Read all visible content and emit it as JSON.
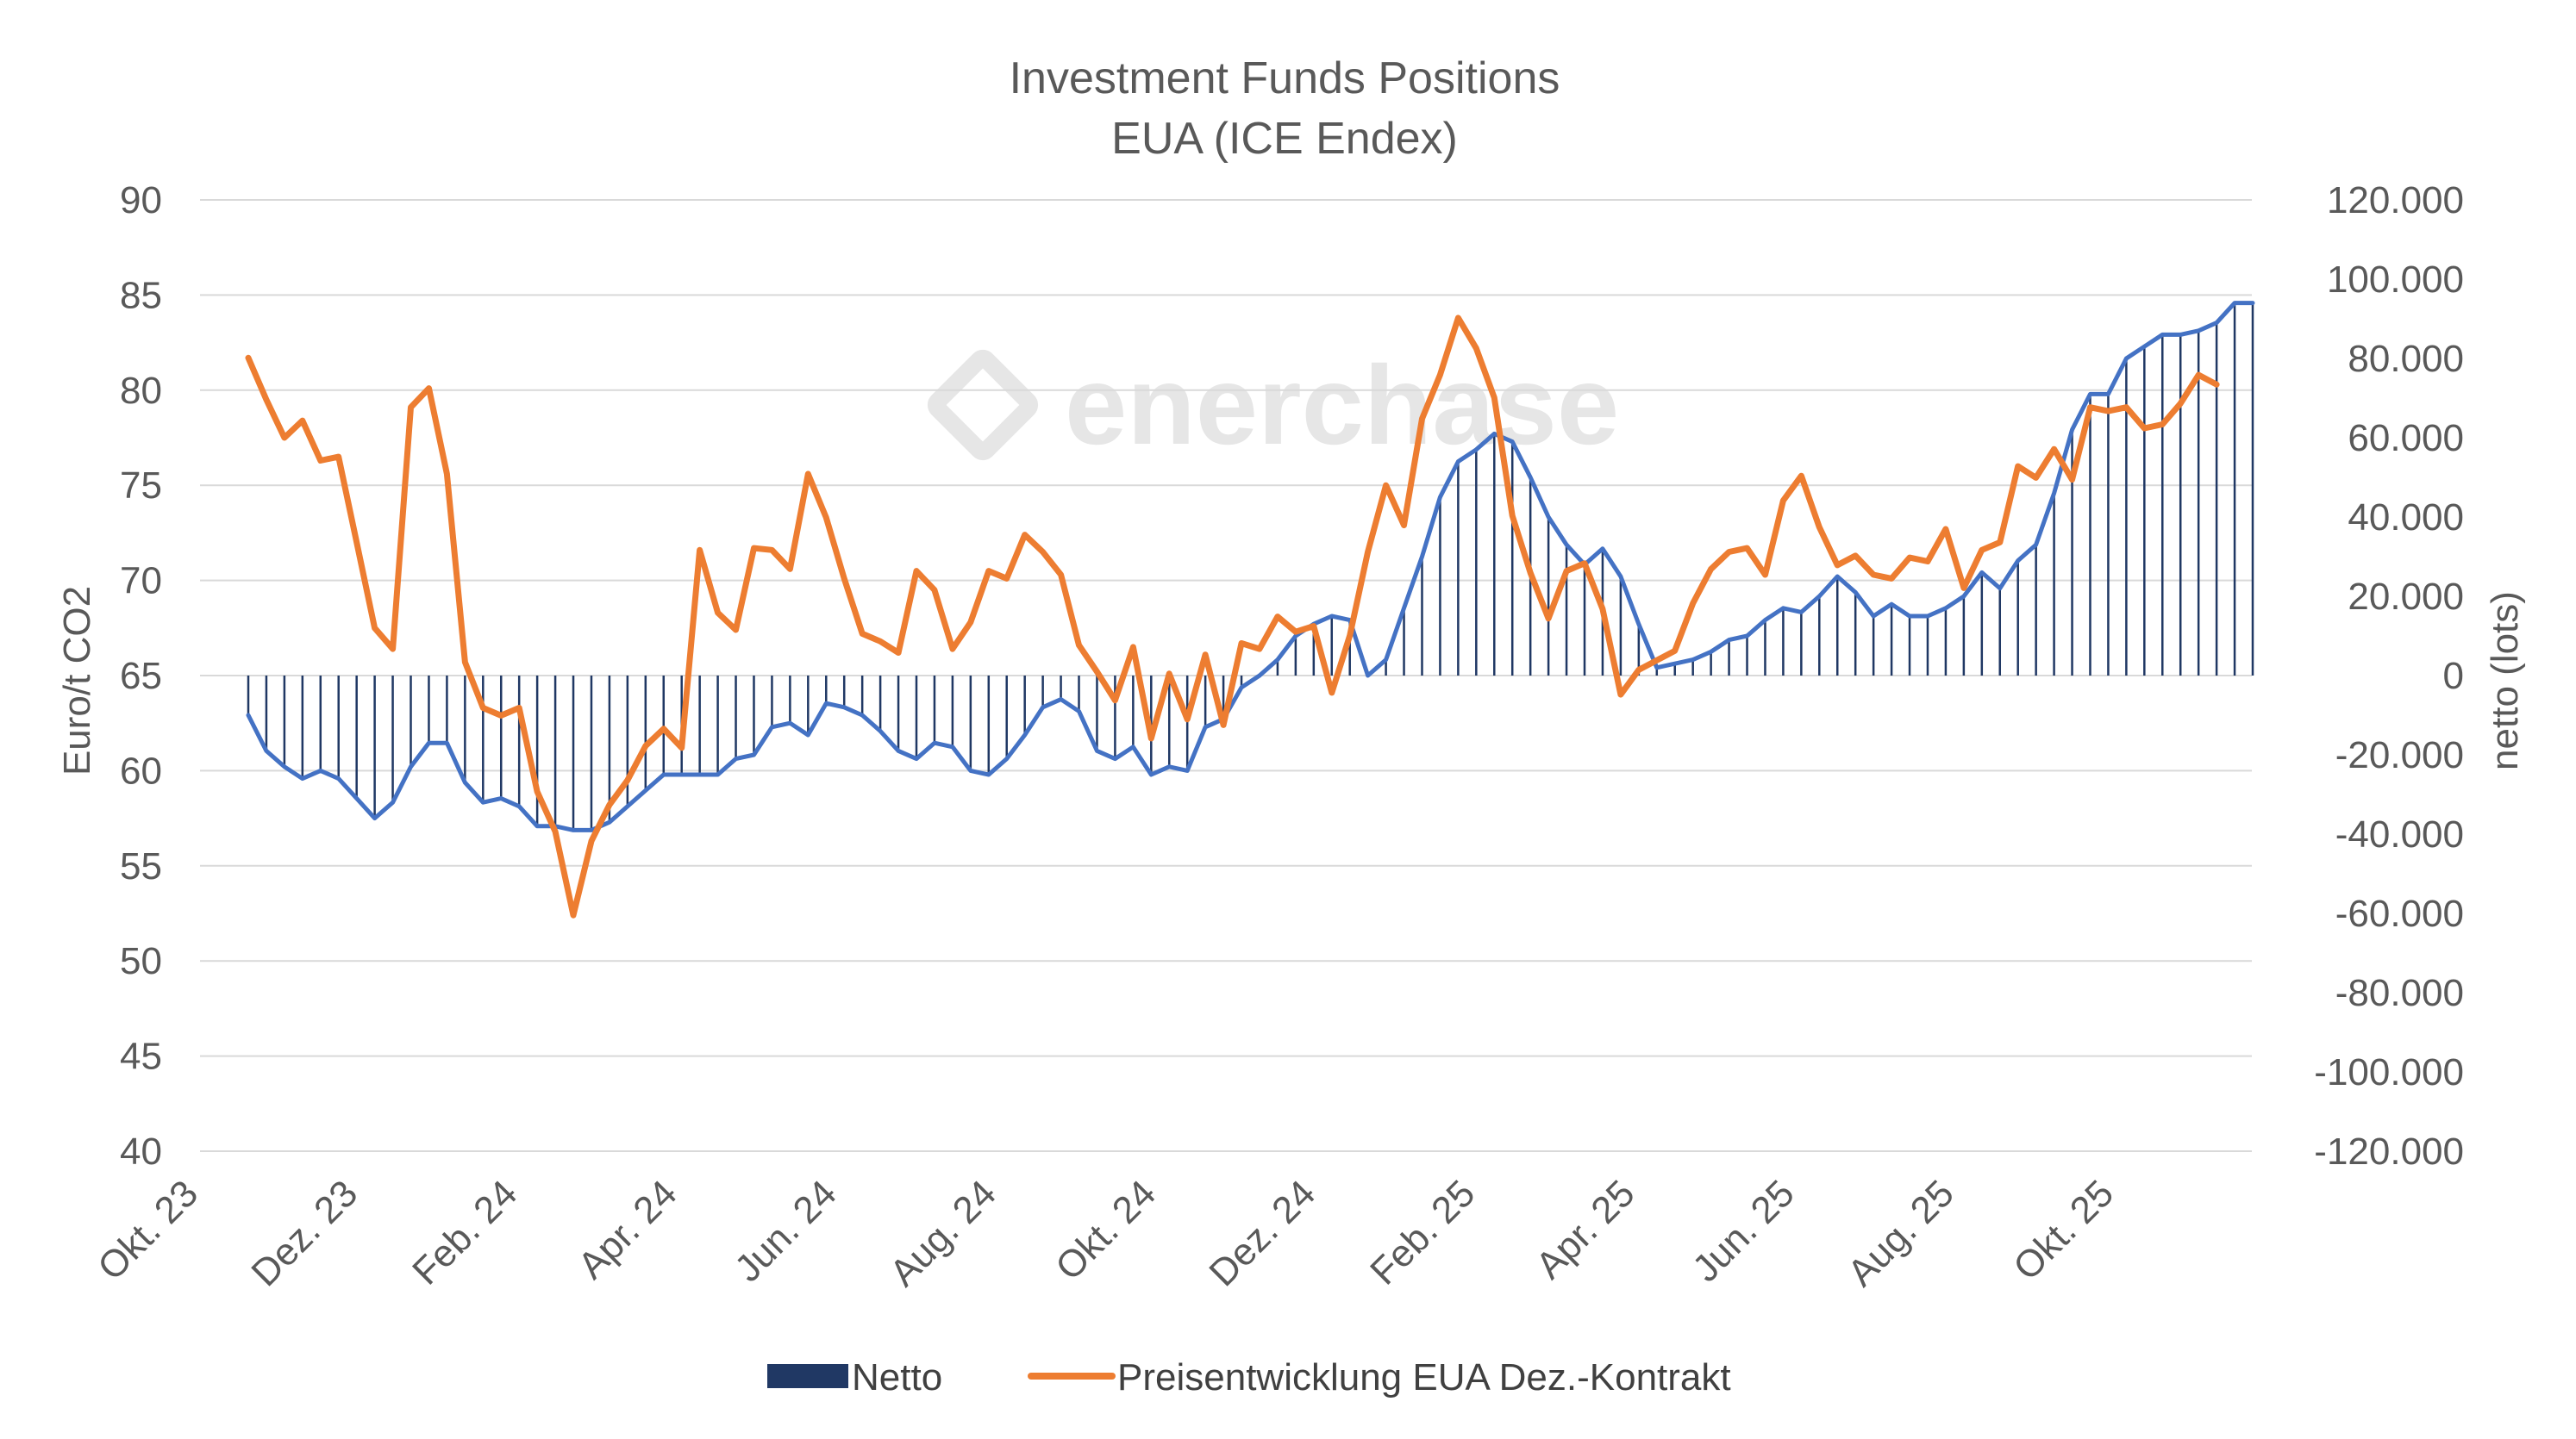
{
  "chart_data": {
    "type": "bar+line",
    "title": "Investment Funds Positions",
    "subtitle": "EUA (ICE Endex)",
    "watermark": "enerchase",
    "y_left_label": "Euro/t CO2",
    "y_right_label": "netto (lots)",
    "y_left_lim": [
      40,
      90
    ],
    "y_left_ticks": [
      "90",
      "85",
      "80",
      "75",
      "70",
      "65",
      "60",
      "55",
      "50",
      "45",
      "40"
    ],
    "y_right_lim": [
      -120000,
      120000
    ],
    "y_right_ticks": [
      "120.000",
      "100.000",
      "80.000",
      "60.000",
      "40.000",
      "20.000",
      "0",
      "-20.000",
      "-40.000",
      "-60.000",
      "-80.000",
      "-100.000",
      "-120.000"
    ],
    "x_ticks": [
      "Okt. 23",
      "Dez. 23",
      "Feb. 24",
      "Apr. 24",
      "Jun. 24",
      "Aug. 24",
      "Okt. 24",
      "Dez. 24",
      "Feb. 25",
      "Apr. 25",
      "Jun. 25",
      "Aug. 25",
      "Okt. 25"
    ],
    "grid": true,
    "legend_position": "bottom",
    "series": [
      {
        "name": "Netto",
        "type": "bar",
        "axis": "right",
        "color": "#203864",
        "values": [
          -10000,
          -19000,
          -23000,
          -26000,
          -24000,
          -26000,
          -31000,
          -36000,
          -32000,
          -23000,
          -17000,
          -17000,
          -27000,
          -32000,
          -31000,
          -33000,
          -38000,
          -38000,
          -39000,
          -39000,
          -37000,
          -33000,
          -29000,
          -25000,
          -25000,
          -25000,
          -25000,
          -21000,
          -20000,
          -13000,
          -12000,
          -15000,
          -7000,
          -8000,
          -10000,
          -14000,
          -19000,
          -21000,
          -17000,
          -18000,
          -24000,
          -25000,
          -21000,
          -15000,
          -8000,
          -6000,
          -9000,
          -19000,
          -21000,
          -18000,
          -25000,
          -23000,
          -24000,
          -13000,
          -11000,
          -3000,
          0,
          4000,
          10000,
          13000,
          15000,
          14000,
          0,
          4000,
          17000,
          30000,
          45000,
          54000,
          57000,
          61000,
          59000,
          50000,
          40000,
          33000,
          28000,
          32000,
          25000,
          13000,
          2000,
          3000,
          4000,
          6000,
          9000,
          10000,
          14000,
          17000,
          16000,
          20000,
          25000,
          21000,
          15000,
          18000,
          15000,
          15000,
          17000,
          20000,
          26000,
          22000,
          29000,
          33000,
          46000,
          62000,
          71000,
          71000,
          80000,
          83000,
          86000,
          86000,
          87000,
          89000,
          94000,
          94000
        ]
      },
      {
        "name": "Preisentwicklung EUA Dez.-Kontrakt",
        "type": "line",
        "axis": "left",
        "color": "#ED7D31",
        "values": [
          81.7,
          79.5,
          77.5,
          78.4,
          76.3,
          76.5,
          72.0,
          67.5,
          66.4,
          79.1,
          80.1,
          75.6,
          65.7,
          63.3,
          62.9,
          63.3,
          58.9,
          56.8,
          52.4,
          56.3,
          58.2,
          59.5,
          61.3,
          62.2,
          61.2,
          71.6,
          68.3,
          67.4,
          71.7,
          71.6,
          70.6,
          75.6,
          73.3,
          70.1,
          67.2,
          66.8,
          66.2,
          70.5,
          69.5,
          66.4,
          67.8,
          70.5,
          70.1,
          72.4,
          71.5,
          70.3,
          66.6,
          65.2,
          63.7,
          66.5,
          61.7,
          65.1,
          62.7,
          66.1,
          62.4,
          66.7,
          66.4,
          68.1,
          67.3,
          67.6,
          64.1,
          67.1,
          71.5,
          75.0,
          72.9,
          78.5,
          80.8,
          83.8,
          82.2,
          79.6,
          73.4,
          70.4,
          68.0,
          70.5,
          70.9,
          68.5,
          64.0,
          65.3,
          65.8,
          66.3,
          68.8,
          70.6,
          71.5,
          71.7,
          70.3,
          74.2,
          75.5,
          72.8,
          70.8,
          71.3,
          70.3,
          70.1,
          71.2,
          71.0,
          72.7,
          69.6,
          71.6,
          72.0,
          76.0,
          75.4,
          76.9,
          75.3,
          79.1,
          78.9,
          79.1,
          78.0,
          78.2,
          79.3,
          80.8,
          80.3
        ]
      }
    ],
    "line_overlay": {
      "name": "Netto line",
      "color": "#4472C4",
      "axis": "right"
    }
  }
}
